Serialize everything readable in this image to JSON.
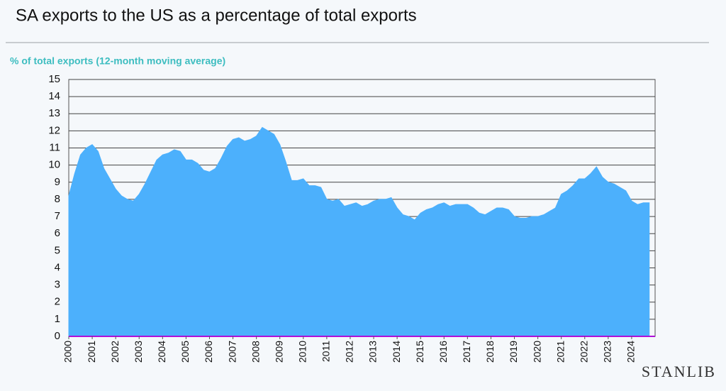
{
  "chart_data": {
    "type": "area",
    "title": "SA exports to the US as a percentage of total exports",
    "subtitle": "% of total exports (12-month moving average)",
    "brand": "STANLIB",
    "x": [
      2000,
      2000.25,
      2000.5,
      2000.75,
      2001,
      2001.25,
      2001.5,
      2001.75,
      2002,
      2002.25,
      2002.5,
      2002.75,
      2003,
      2003.25,
      2003.5,
      2003.75,
      2004,
      2004.25,
      2004.5,
      2004.75,
      2005,
      2005.25,
      2005.5,
      2005.75,
      2006,
      2006.25,
      2006.5,
      2006.75,
      2007,
      2007.25,
      2007.5,
      2007.75,
      2008,
      2008.25,
      2008.5,
      2008.75,
      2009,
      2009.25,
      2009.5,
      2009.75,
      2010,
      2010.25,
      2010.5,
      2010.75,
      2011,
      2011.25,
      2011.5,
      2011.75,
      2012,
      2012.25,
      2012.5,
      2012.75,
      2013,
      2013.25,
      2013.5,
      2013.75,
      2014,
      2014.25,
      2014.5,
      2014.75,
      2015,
      2015.25,
      2015.5,
      2015.75,
      2016,
      2016.25,
      2016.5,
      2016.75,
      2017,
      2017.25,
      2017.5,
      2017.75,
      2018,
      2018.25,
      2018.5,
      2018.75,
      2019,
      2019.25,
      2019.5,
      2019.75,
      2020,
      2020.25,
      2020.5,
      2020.75,
      2021,
      2021.25,
      2021.5,
      2021.75,
      2022,
      2022.25,
      2022.5,
      2022.75,
      2023,
      2023.25,
      2023.5,
      2023.75,
      2024,
      2024.25,
      2024.5,
      2024.75
    ],
    "series": [
      {
        "color": "#4cb0fc",
        "values": [
          8.2,
          9.5,
          10.6,
          11.0,
          11.2,
          10.8,
          9.8,
          9.2,
          8.6,
          8.2,
          8.0,
          7.9,
          8.3,
          8.9,
          9.6,
          10.3,
          10.6,
          10.7,
          10.9,
          10.8,
          10.3,
          10.3,
          10.1,
          9.7,
          9.6,
          9.8,
          10.4,
          11.1,
          11.5,
          11.6,
          11.4,
          11.5,
          11.7,
          12.2,
          12.0,
          11.8,
          11.2,
          10.2,
          9.1,
          9.1,
          9.2,
          8.8,
          8.8,
          8.7,
          8.0,
          7.9,
          8.0,
          7.6,
          7.7,
          7.8,
          7.6,
          7.7,
          7.9,
          8.0,
          8.0,
          8.1,
          7.5,
          7.1,
          7.0,
          6.8,
          7.2,
          7.4,
          7.5,
          7.7,
          7.8,
          7.6,
          7.7,
          7.7,
          7.7,
          7.5,
          7.2,
          7.1,
          7.3,
          7.5,
          7.5,
          7.4,
          7.0,
          6.9,
          6.9,
          7.0,
          7.0,
          7.1,
          7.3,
          7.5,
          8.3,
          8.5,
          8.8,
          9.2,
          9.2,
          9.5,
          9.9,
          9.3,
          9.0,
          8.9,
          8.7,
          8.5,
          7.9,
          7.7,
          7.8,
          7.8
        ]
      }
    ],
    "xlim": [
      2000,
      2025
    ],
    "xticks": [
      2000,
      2001,
      2002,
      2003,
      2004,
      2005,
      2006,
      2007,
      2008,
      2009,
      2010,
      2011,
      2012,
      2013,
      2014,
      2015,
      2016,
      2017,
      2018,
      2019,
      2020,
      2021,
      2022,
      2023,
      2024
    ],
    "ylim": [
      0,
      15
    ],
    "yticks": [
      0,
      1,
      2,
      3,
      4,
      5,
      6,
      7,
      8,
      9,
      10,
      11,
      12,
      13,
      14,
      15
    ],
    "grid": true
  }
}
